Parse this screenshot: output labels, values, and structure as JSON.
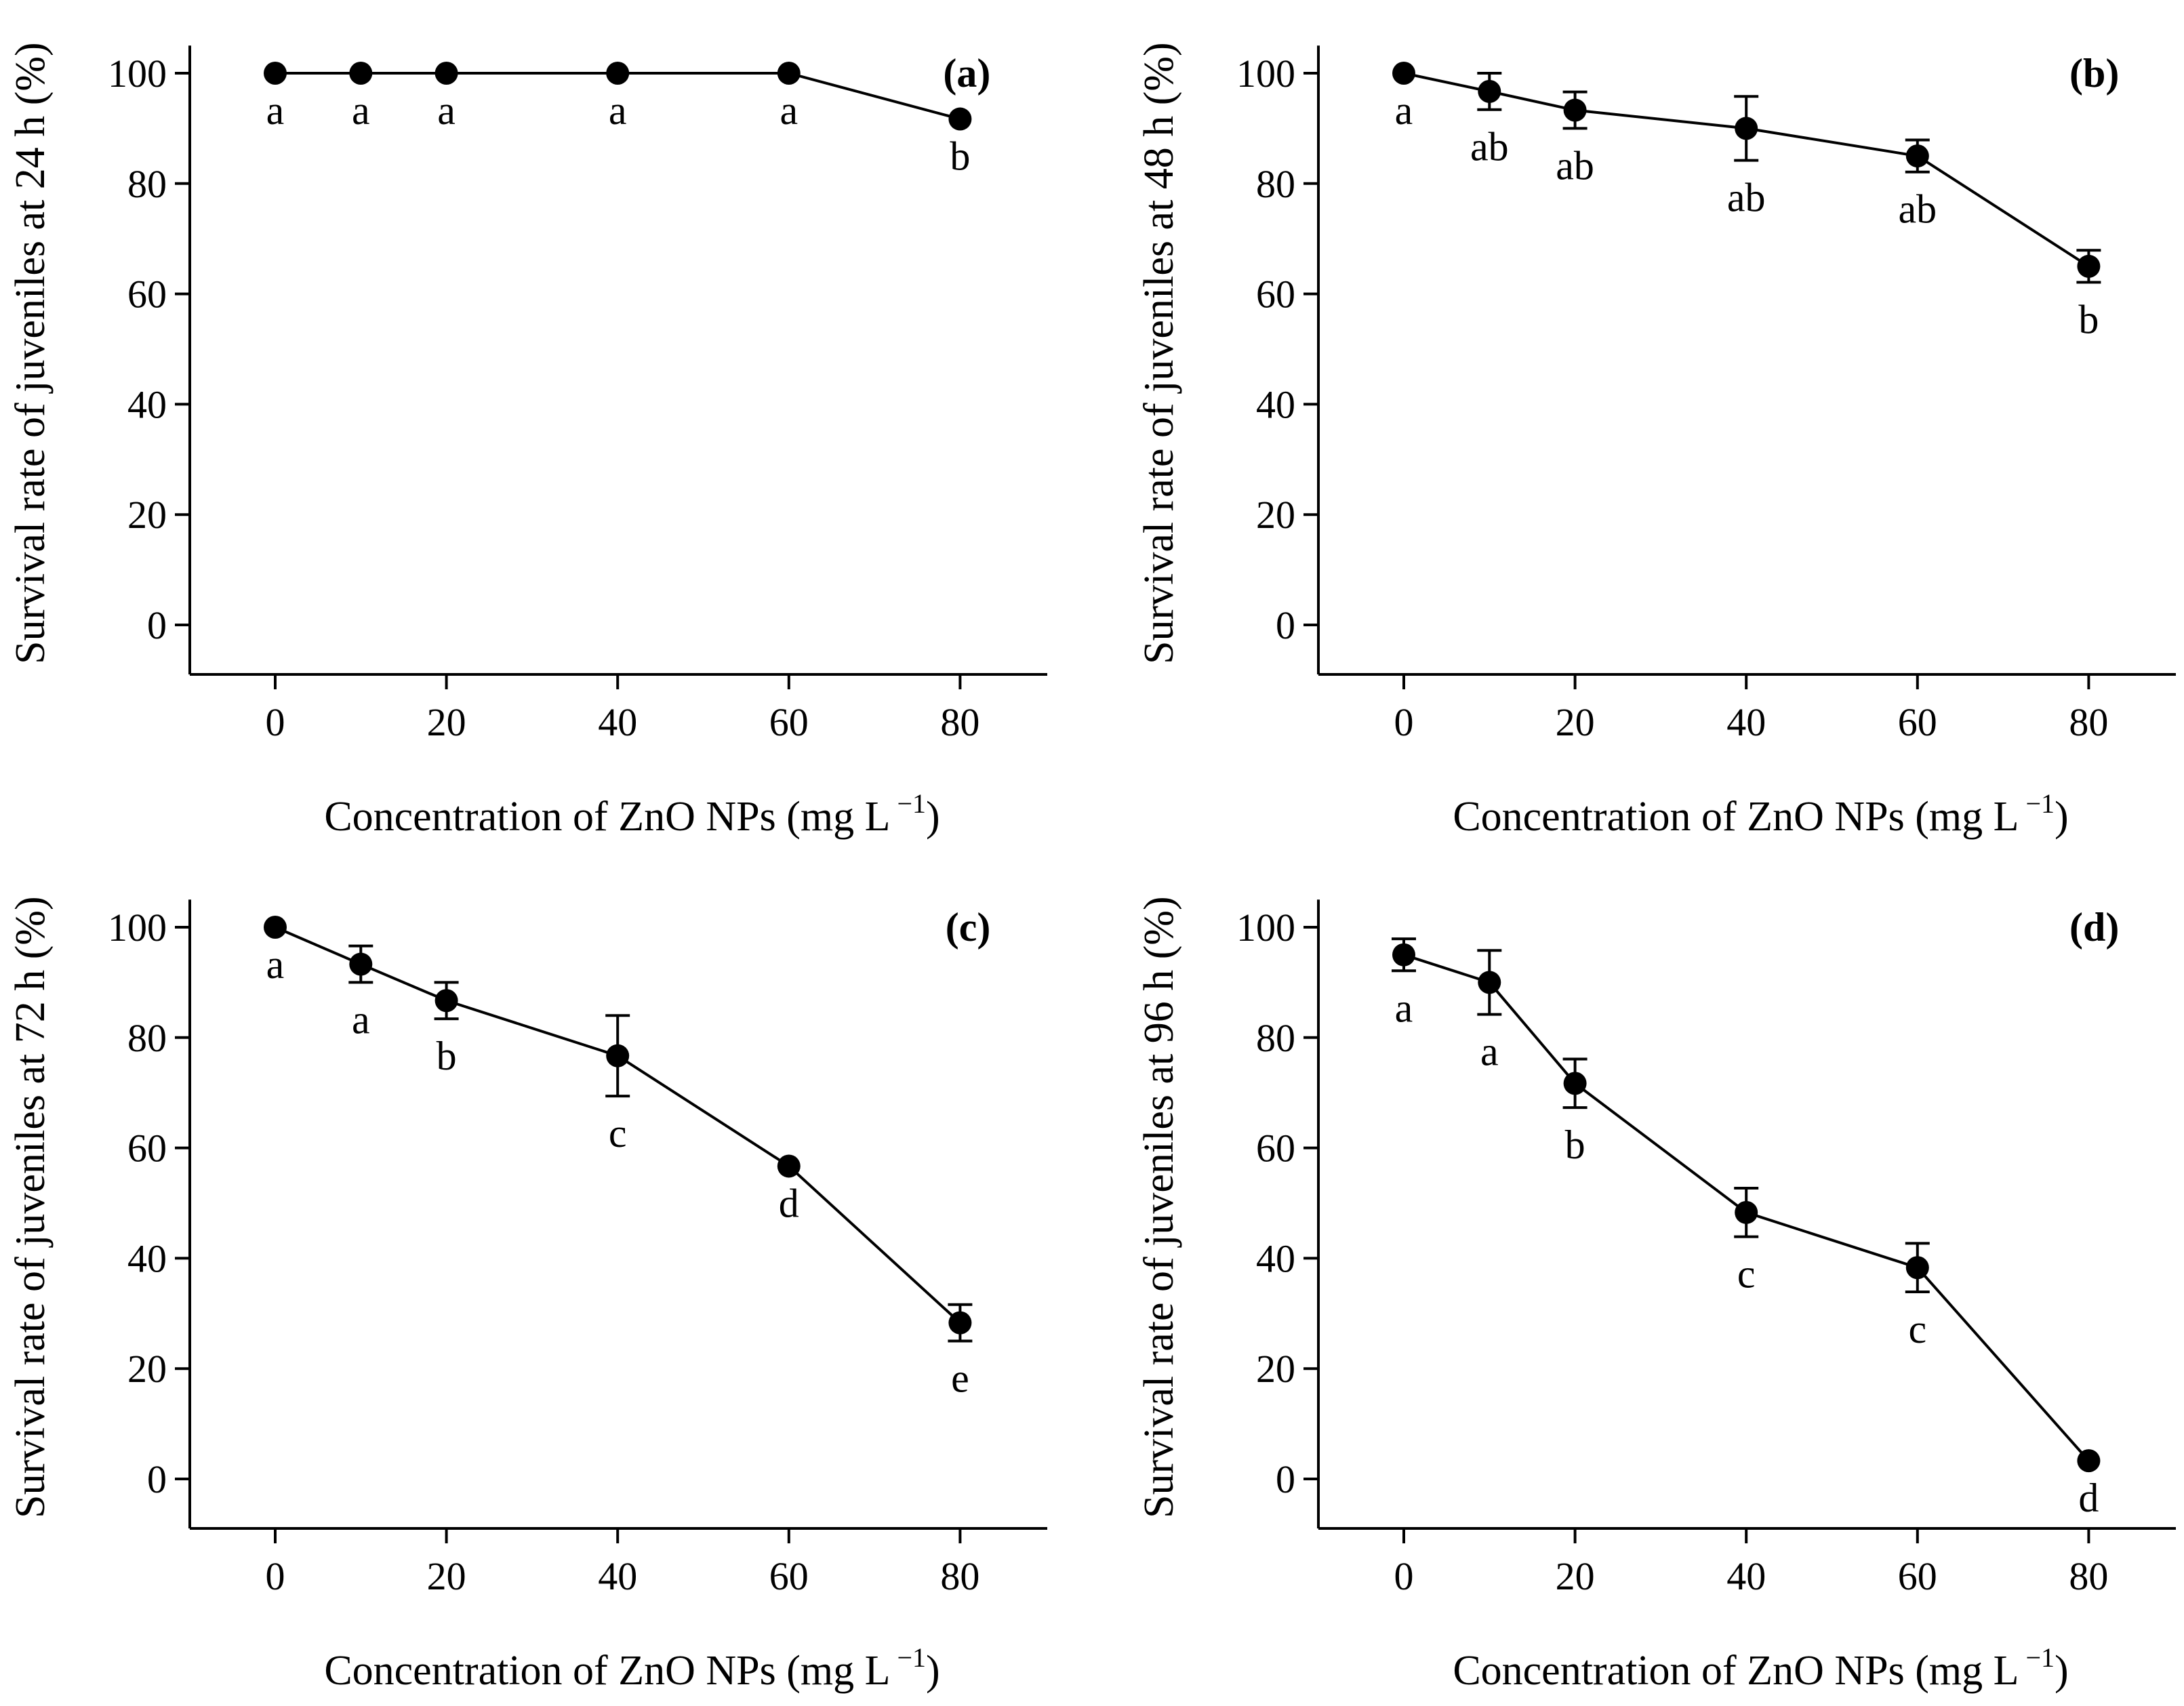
{
  "figure": {
    "x_axis_title": "Concentration of ZnO NPs (mg L",
    "x_axis_unit_superscript": "−1",
    "x_axis_title_close": ")",
    "line_color": "#000000",
    "marker_color": "#000000",
    "background_color": "#ffffff"
  },
  "chart_data": [
    {
      "type": "line",
      "panel_label": "(a)",
      "title": "",
      "xlabel": "Concentration of ZnO NPs (mg L−1)",
      "ylabel": "Survival rate of juveniles at 24 h (%)",
      "x": [
        0,
        10,
        20,
        40,
        60,
        80
      ],
      "y": [
        100,
        100,
        100,
        100,
        100,
        91.7
      ],
      "error": [
        0,
        0,
        0,
        0,
        0,
        0
      ],
      "significance": [
        "a",
        "a",
        "a",
        "a",
        "a",
        "b"
      ],
      "xlim": [
        -10,
        90
      ],
      "ylim": [
        -9,
        105
      ],
      "xticks": [
        0,
        20,
        40,
        60,
        80
      ],
      "yticks": [
        0,
        20,
        40,
        60,
        80,
        100
      ],
      "grid": false,
      "legend": "none"
    },
    {
      "type": "line",
      "panel_label": "(b)",
      "title": "",
      "xlabel": "Concentration of ZnO NPs (mg L−1)",
      "ylabel": "Survival rate of juveniles at 48 h (%)",
      "x": [
        0,
        10,
        20,
        40,
        60,
        80
      ],
      "y": [
        100,
        96.7,
        93.3,
        90,
        85,
        65
      ],
      "error": [
        0,
        3.3,
        3.3,
        5.8,
        2.9,
        2.9
      ],
      "significance": [
        "a",
        "ab",
        "ab",
        "ab",
        "ab",
        "b"
      ],
      "xlim": [
        -10,
        90
      ],
      "ylim": [
        -9,
        105
      ],
      "xticks": [
        0,
        20,
        40,
        60,
        80
      ],
      "yticks": [
        0,
        20,
        40,
        60,
        80,
        100
      ],
      "grid": false,
      "legend": "none"
    },
    {
      "type": "line",
      "panel_label": "(c)",
      "title": "",
      "xlabel": "Concentration of ZnO NPs (mg L−1)",
      "ylabel": "Survival rate of juveniles at 72 h (%)",
      "x": [
        0,
        10,
        20,
        40,
        60,
        80
      ],
      "y": [
        100,
        93.3,
        86.7,
        76.7,
        56.7,
        28.3
      ],
      "error": [
        0,
        3.3,
        3.3,
        7.3,
        0,
        3.3
      ],
      "significance": [
        "a",
        "a",
        "b",
        "c",
        "d",
        "e"
      ],
      "xlim": [
        -10,
        90
      ],
      "ylim": [
        -9,
        105
      ],
      "xticks": [
        0,
        20,
        40,
        60,
        80
      ],
      "yticks": [
        0,
        20,
        40,
        60,
        80,
        100
      ],
      "grid": false,
      "legend": "none"
    },
    {
      "type": "line",
      "panel_label": "(d)",
      "title": "",
      "xlabel": "Concentration of ZnO NPs (mg L−1)",
      "ylabel": "Survival rate of juveniles at 96 h (%)",
      "x": [
        0,
        10,
        20,
        40,
        60,
        80
      ],
      "y": [
        95,
        90,
        71.7,
        48.3,
        38.3,
        3.3
      ],
      "error": [
        2.9,
        5.8,
        4.4,
        4.4,
        4.4,
        0
      ],
      "significance": [
        "a",
        "a",
        "b",
        "c",
        "c",
        "d"
      ],
      "xlim": [
        -10,
        90
      ],
      "ylim": [
        -9,
        105
      ],
      "xticks": [
        0,
        20,
        40,
        60,
        80
      ],
      "yticks": [
        0,
        20,
        40,
        60,
        80,
        100
      ],
      "grid": false,
      "legend": "none"
    }
  ]
}
